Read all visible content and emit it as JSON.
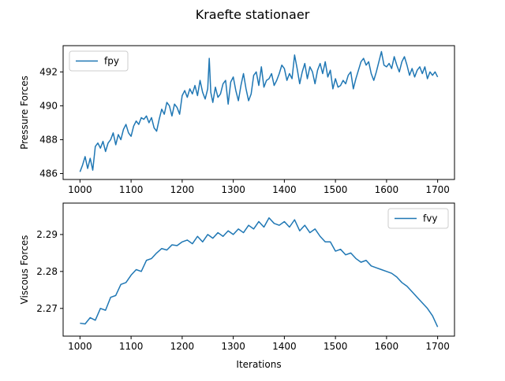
{
  "figure": {
    "title": "Kraefte stationaer"
  },
  "chart_data": [
    {
      "type": "line",
      "id": "pressure",
      "ylabel": "Pressure Forces",
      "xlabel": "",
      "xlim": [
        967,
        1733
      ],
      "ylim": [
        485.65,
        493.55
      ],
      "xticks": [
        1000,
        1100,
        1200,
        1300,
        1400,
        1500,
        1600,
        1700
      ],
      "yticks": [
        486,
        488,
        490,
        492
      ],
      "legend": {
        "label": "fpy",
        "position": "upper left"
      },
      "color": "#1f77b4",
      "series": [
        {
          "name": "fpy",
          "x": [
            1000,
            1005,
            1010,
            1015,
            1020,
            1025,
            1030,
            1035,
            1040,
            1045,
            1050,
            1055,
            1060,
            1065,
            1070,
            1075,
            1080,
            1085,
            1090,
            1095,
            1100,
            1105,
            1110,
            1115,
            1120,
            1125,
            1130,
            1135,
            1140,
            1145,
            1150,
            1155,
            1160,
            1165,
            1170,
            1175,
            1180,
            1185,
            1190,
            1195,
            1200,
            1205,
            1210,
            1215,
            1220,
            1225,
            1230,
            1235,
            1240,
            1245,
            1250,
            1253,
            1256,
            1260,
            1265,
            1270,
            1275,
            1280,
            1285,
            1290,
            1295,
            1300,
            1305,
            1310,
            1315,
            1320,
            1325,
            1330,
            1335,
            1340,
            1345,
            1350,
            1355,
            1360,
            1365,
            1370,
            1375,
            1380,
            1385,
            1390,
            1395,
            1400,
            1405,
            1410,
            1415,
            1420,
            1425,
            1430,
            1435,
            1440,
            1445,
            1450,
            1455,
            1460,
            1465,
            1470,
            1475,
            1480,
            1485,
            1490,
            1495,
            1500,
            1505,
            1510,
            1515,
            1520,
            1525,
            1530,
            1535,
            1540,
            1545,
            1550,
            1555,
            1560,
            1565,
            1570,
            1575,
            1580,
            1585,
            1590,
            1595,
            1600,
            1605,
            1610,
            1615,
            1620,
            1625,
            1630,
            1635,
            1640,
            1645,
            1650,
            1655,
            1660,
            1665,
            1670,
            1675,
            1680,
            1685,
            1690,
            1695,
            1700
          ],
          "y": [
            486.1,
            486.5,
            487.0,
            486.3,
            486.9,
            486.2,
            487.6,
            487.8,
            487.5,
            487.9,
            487.3,
            487.8,
            488.0,
            488.4,
            487.7,
            488.3,
            488.0,
            488.6,
            488.9,
            488.4,
            488.2,
            488.8,
            489.1,
            488.9,
            489.3,
            489.2,
            489.4,
            489.0,
            489.3,
            488.7,
            488.5,
            489.2,
            489.8,
            489.5,
            490.2,
            490.0,
            489.4,
            490.1,
            489.9,
            489.5,
            490.6,
            490.9,
            490.5,
            491.0,
            490.7,
            491.2,
            490.6,
            491.5,
            490.8,
            490.4,
            491.0,
            492.8,
            490.8,
            490.2,
            491.1,
            490.5,
            490.7,
            491.3,
            491.5,
            490.1,
            491.4,
            491.7,
            490.9,
            490.3,
            491.2,
            491.9,
            491.0,
            490.3,
            490.7,
            491.8,
            492.0,
            491.2,
            492.3,
            491.1,
            491.5,
            491.6,
            491.9,
            491.2,
            491.5,
            491.9,
            492.4,
            492.2,
            491.5,
            491.9,
            491.6,
            493.0,
            492.2,
            491.3,
            492.0,
            492.5,
            491.6,
            492.3,
            492.0,
            491.3,
            492.1,
            492.5,
            491.9,
            492.6,
            491.7,
            492.1,
            491.0,
            491.6,
            491.1,
            491.2,
            491.5,
            491.3,
            491.8,
            492.0,
            491.0,
            491.6,
            492.1,
            492.6,
            492.8,
            492.4,
            492.6,
            491.9,
            491.5,
            492.0,
            492.6,
            493.2,
            492.4,
            492.3,
            492.5,
            492.2,
            492.9,
            492.4,
            492.0,
            492.6,
            492.9,
            492.4,
            491.8,
            492.2,
            491.7,
            492.1,
            492.3,
            491.9,
            492.3,
            491.6,
            492.0,
            491.8,
            492.0,
            491.7
          ]
        }
      ]
    },
    {
      "type": "line",
      "id": "viscous",
      "ylabel": "Viscous Forces",
      "xlabel": "Iterations",
      "xlim": [
        967,
        1733
      ],
      "ylim": [
        2.2625,
        2.2985
      ],
      "xticks": [
        1000,
        1100,
        1200,
        1300,
        1400,
        1500,
        1600,
        1700
      ],
      "yticks": [
        2.27,
        2.28,
        2.29
      ],
      "ytick_labels": [
        "2.27",
        "2.28",
        "2.29"
      ],
      "legend": {
        "label": "fvy",
        "position": "upper right"
      },
      "color": "#1f77b4",
      "series": [
        {
          "name": "fvy",
          "x": [
            1000,
            1010,
            1020,
            1030,
            1040,
            1050,
            1060,
            1070,
            1080,
            1090,
            1100,
            1110,
            1120,
            1130,
            1140,
            1150,
            1160,
            1170,
            1180,
            1190,
            1200,
            1210,
            1220,
            1230,
            1240,
            1250,
            1260,
            1270,
            1280,
            1290,
            1300,
            1310,
            1320,
            1330,
            1340,
            1350,
            1360,
            1370,
            1380,
            1390,
            1400,
            1410,
            1420,
            1430,
            1440,
            1450,
            1460,
            1470,
            1480,
            1490,
            1500,
            1510,
            1520,
            1530,
            1540,
            1550,
            1560,
            1570,
            1580,
            1590,
            1600,
            1610,
            1620,
            1630,
            1640,
            1650,
            1660,
            1670,
            1680,
            1690,
            1700
          ],
          "y": [
            2.266,
            2.2658,
            2.2675,
            2.2668,
            2.27,
            2.2695,
            2.273,
            2.2735,
            2.2765,
            2.277,
            2.279,
            2.2805,
            2.28,
            2.283,
            2.2835,
            2.285,
            2.2862,
            2.2858,
            2.2872,
            2.287,
            2.288,
            2.2885,
            2.2875,
            2.2895,
            2.288,
            2.29,
            2.289,
            2.2905,
            2.2895,
            2.291,
            2.29,
            2.2915,
            2.2905,
            2.2925,
            2.2915,
            2.2935,
            2.292,
            2.2945,
            2.293,
            2.2925,
            2.2935,
            2.292,
            2.294,
            2.291,
            2.2925,
            2.2905,
            2.2915,
            2.2895,
            2.288,
            2.288,
            2.2855,
            2.286,
            2.2845,
            2.285,
            2.2835,
            2.2825,
            2.283,
            2.2815,
            2.281,
            2.2805,
            2.28,
            2.2795,
            2.2785,
            2.277,
            2.276,
            2.2745,
            2.273,
            2.2715,
            2.27,
            2.268,
            2.265
          ]
        }
      ]
    }
  ]
}
